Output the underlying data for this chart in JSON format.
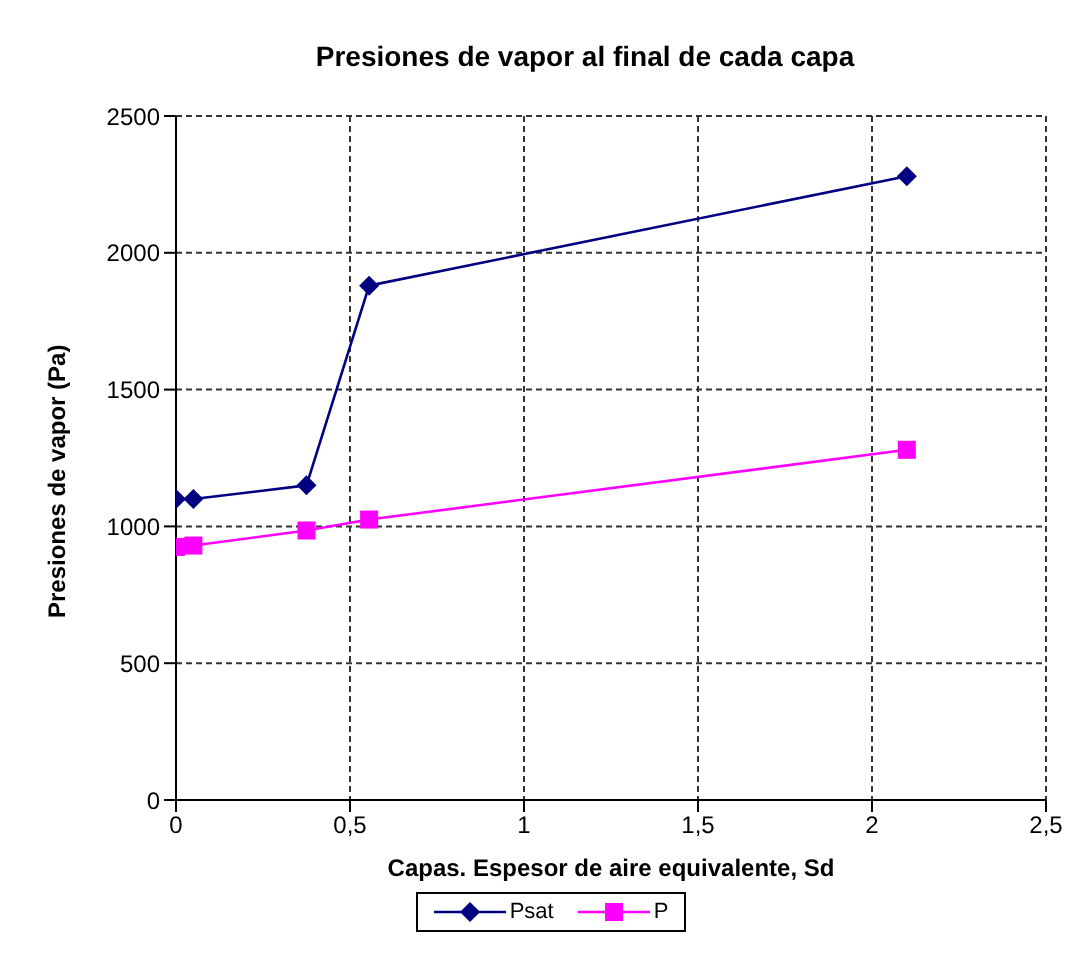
{
  "chart_data": {
    "type": "line",
    "title": "Presiones de vapor al final de cada capa",
    "xlabel": "Capas. Espesor de aire equivalente, Sd",
    "ylabel": "Presiones de vapor (Pa)",
    "x": [
      0,
      0.05,
      0.375,
      0.555,
      2.1
    ],
    "series": [
      {
        "name": "Psat",
        "color": "#000080",
        "marker": "diamond",
        "values": [
          1100,
          1100,
          1150,
          1880,
          2280
        ]
      },
      {
        "name": "P",
        "color": "#ff00ff",
        "marker": "square",
        "values": [
          925,
          930,
          985,
          1025,
          1280
        ]
      }
    ],
    "xlim": [
      0,
      2.5
    ],
    "xticks": [
      0,
      {
        "value": 0.5,
        "label": "0,5"
      },
      1,
      {
        "value": 1.5,
        "label": "1,5"
      },
      2,
      {
        "value": 2.5,
        "label": "2,5"
      }
    ],
    "ylim": [
      0,
      2500
    ],
    "yticks": [
      0,
      500,
      1000,
      1500,
      2000,
      2500
    ],
    "grid": true,
    "legend": "bottom",
    "line_style": "solid"
  }
}
